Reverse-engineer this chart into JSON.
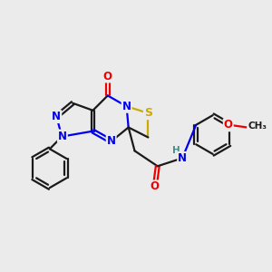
{
  "background_color": "#ebebeb",
  "atom_colors": {
    "C": "#1a1a1a",
    "N": "#0000ee",
    "O": "#ee0000",
    "S": "#ccaa00",
    "H": "#4a8a8a"
  },
  "bond_lw": 1.6,
  "figsize": [
    3.0,
    3.0
  ],
  "dpi": 100,
  "xlim": [
    0,
    10
  ],
  "ylim": [
    0,
    10
  ]
}
